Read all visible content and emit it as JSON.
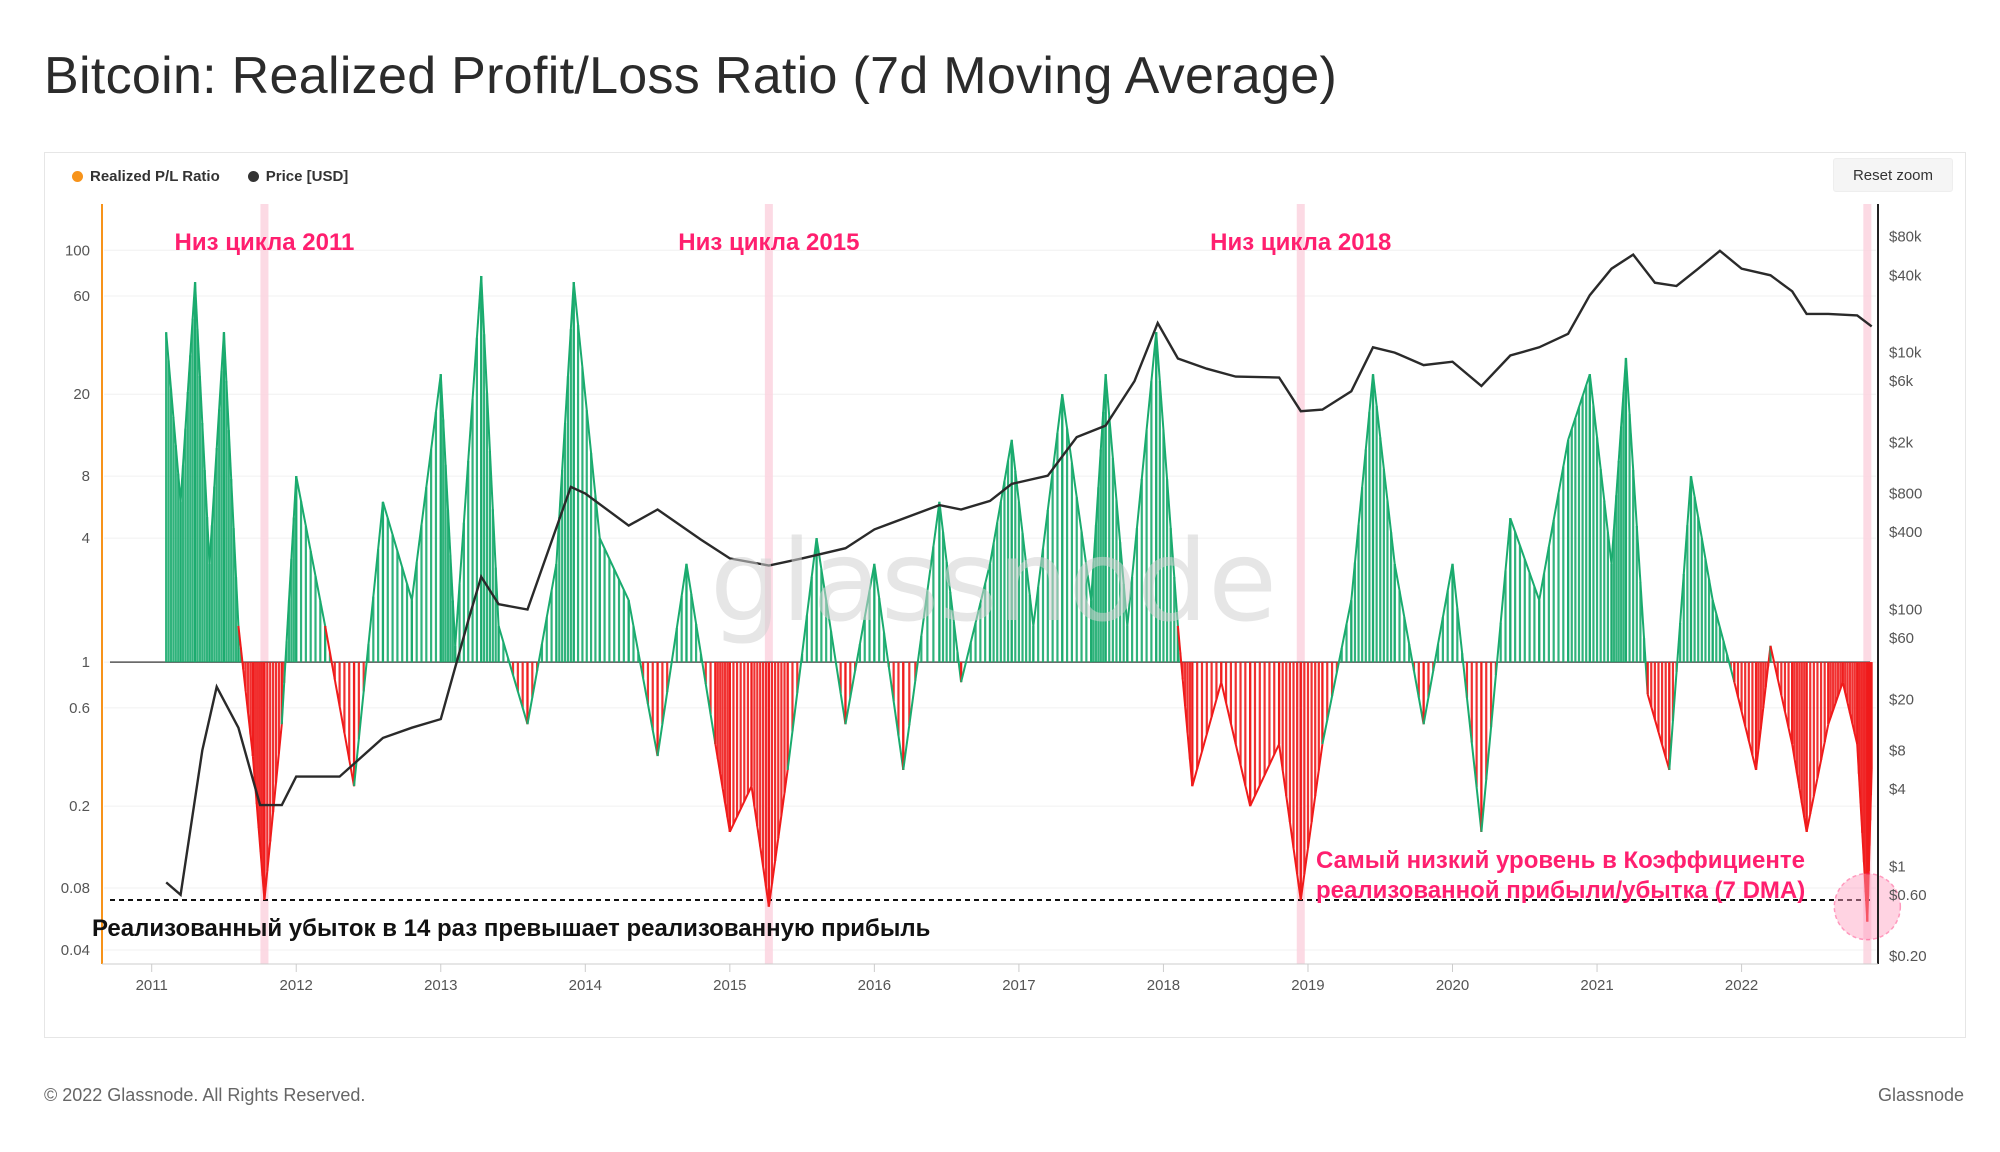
{
  "title": "Bitcoin: Realized Profit/Loss Ratio (7d Moving Average)",
  "legend": [
    {
      "label": "Realized P/L Ratio",
      "color": "#f7931a"
    },
    {
      "label": "Price [USD]",
      "color": "#333333"
    }
  ],
  "reset_zoom_label": "Reset zoom",
  "watermark": "glassnode",
  "footer": {
    "copyright": "© 2022 Glassnode. All Rights Reserved.",
    "brand": "Glassnode"
  },
  "colors": {
    "above_one": "#1aab6e",
    "below_one": "#f01b1b",
    "price": "#2a2a2a",
    "highlight": "#ff1f6f",
    "cycle_band": "#fbd3df"
  },
  "chart_data": {
    "type": "line",
    "x_ticks": [
      "2011",
      "2012",
      "2013",
      "2014",
      "2015",
      "2016",
      "2017",
      "2018",
      "2019",
      "2020",
      "2021",
      "2022"
    ],
    "left_axis": {
      "scale": "log",
      "ticks": [
        "100",
        "60",
        "20",
        "8",
        "4",
        "1",
        "0.6",
        "0.2",
        "0.08",
        "0.04"
      ],
      "range": [
        0.035,
        150
      ]
    },
    "right_axis": {
      "scale": "log",
      "ticks": [
        "$80k",
        "$40k",
        "$10k",
        "$6k",
        "$2k",
        "$800",
        "$400",
        "$100",
        "$60",
        "$20",
        "$8",
        "$4",
        "$1",
        "$0.60",
        "$0.20"
      ],
      "range": [
        0.18,
        120000
      ]
    },
    "reference_lines": [
      {
        "value": 1,
        "style": "solid"
      },
      {
        "value": 0.07,
        "style": "dashed"
      }
    ],
    "cycle_bottoms": [
      {
        "label": "Низ цикла 2011",
        "x": 2011.78
      },
      {
        "label": "Низ цикла 2015",
        "x": 2015.27
      },
      {
        "label": "Низ цикла 2018",
        "x": 2018.95
      },
      {
        "label": "",
        "x": 2022.87
      }
    ],
    "annotations": {
      "lowest_line1": "Самый низкий уровень в Коэффициенте",
      "lowest_line2": "реализованной прибыли/убытка (7 DMA)",
      "loss_14x": "Реализованный убыток в 14 раз превышает реализованную прибыль"
    },
    "series": [
      {
        "name": "Realized P/L Ratio",
        "points": [
          [
            2011.1,
            40
          ],
          [
            2011.2,
            6
          ],
          [
            2011.3,
            70
          ],
          [
            2011.4,
            3
          ],
          [
            2011.5,
            40
          ],
          [
            2011.6,
            1.5
          ],
          [
            2011.7,
            0.35
          ],
          [
            2011.78,
            0.07
          ],
          [
            2011.9,
            0.5
          ],
          [
            2012.0,
            8
          ],
          [
            2012.2,
            1.5
          ],
          [
            2012.4,
            0.25
          ],
          [
            2012.6,
            6
          ],
          [
            2012.8,
            2
          ],
          [
            2013.0,
            25
          ],
          [
            2013.1,
            1.2
          ],
          [
            2013.28,
            75
          ],
          [
            2013.4,
            1.5
          ],
          [
            2013.6,
            0.5
          ],
          [
            2013.8,
            3
          ],
          [
            2013.92,
            70
          ],
          [
            2014.1,
            4
          ],
          [
            2014.3,
            2
          ],
          [
            2014.5,
            0.35
          ],
          [
            2014.7,
            3
          ],
          [
            2014.9,
            0.4
          ],
          [
            2015.0,
            0.15
          ],
          [
            2015.15,
            0.25
          ],
          [
            2015.27,
            0.065
          ],
          [
            2015.4,
            0.3
          ],
          [
            2015.6,
            4
          ],
          [
            2015.8,
            0.5
          ],
          [
            2016.0,
            3
          ],
          [
            2016.2,
            0.3
          ],
          [
            2016.45,
            6
          ],
          [
            2016.6,
            0.8
          ],
          [
            2016.8,
            3
          ],
          [
            2016.95,
            12
          ],
          [
            2017.1,
            1.5
          ],
          [
            2017.3,
            20
          ],
          [
            2017.5,
            2
          ],
          [
            2017.6,
            25
          ],
          [
            2017.75,
            1.5
          ],
          [
            2017.95,
            40
          ],
          [
            2018.1,
            1.5
          ],
          [
            2018.2,
            0.25
          ],
          [
            2018.4,
            0.8
          ],
          [
            2018.6,
            0.2
          ],
          [
            2018.8,
            0.4
          ],
          [
            2018.95,
            0.07
          ],
          [
            2019.1,
            0.4
          ],
          [
            2019.3,
            2
          ],
          [
            2019.45,
            25
          ],
          [
            2019.6,
            3
          ],
          [
            2019.8,
            0.5
          ],
          [
            2020.0,
            3
          ],
          [
            2020.2,
            0.15
          ],
          [
            2020.4,
            5
          ],
          [
            2020.6,
            2
          ],
          [
            2020.8,
            12
          ],
          [
            2020.95,
            25
          ],
          [
            2021.1,
            3
          ],
          [
            2021.2,
            30
          ],
          [
            2021.35,
            0.7
          ],
          [
            2021.5,
            0.3
          ],
          [
            2021.65,
            8
          ],
          [
            2021.8,
            2
          ],
          [
            2021.95,
            0.8
          ],
          [
            2022.1,
            0.3
          ],
          [
            2022.2,
            1.2
          ],
          [
            2022.35,
            0.4
          ],
          [
            2022.45,
            0.15
          ],
          [
            2022.6,
            0.5
          ],
          [
            2022.7,
            0.8
          ],
          [
            2022.8,
            0.4
          ],
          [
            2022.87,
            0.055
          ],
          [
            2022.9,
            0.3
          ]
        ]
      },
      {
        "name": "Price [USD]",
        "points": [
          [
            2011.1,
            0.75
          ],
          [
            2011.2,
            0.6
          ],
          [
            2011.35,
            8
          ],
          [
            2011.45,
            25
          ],
          [
            2011.6,
            12
          ],
          [
            2011.75,
            3
          ],
          [
            2011.9,
            3
          ],
          [
            2012.0,
            5
          ],
          [
            2012.3,
            5
          ],
          [
            2012.6,
            10
          ],
          [
            2012.8,
            12
          ],
          [
            2013.0,
            14
          ],
          [
            2013.2,
            90
          ],
          [
            2013.28,
            180
          ],
          [
            2013.4,
            110
          ],
          [
            2013.6,
            100
          ],
          [
            2013.9,
            900
          ],
          [
            2014.0,
            800
          ],
          [
            2014.3,
            450
          ],
          [
            2014.5,
            600
          ],
          [
            2014.8,
            350
          ],
          [
            2015.0,
            250
          ],
          [
            2015.27,
            220
          ],
          [
            2015.5,
            250
          ],
          [
            2015.8,
            300
          ],
          [
            2016.0,
            420
          ],
          [
            2016.45,
            650
          ],
          [
            2016.6,
            600
          ],
          [
            2016.8,
            700
          ],
          [
            2016.95,
            950
          ],
          [
            2017.2,
            1100
          ],
          [
            2017.4,
            2200
          ],
          [
            2017.6,
            2700
          ],
          [
            2017.8,
            6000
          ],
          [
            2017.96,
            17000
          ],
          [
            2018.1,
            9000
          ],
          [
            2018.3,
            7500
          ],
          [
            2018.5,
            6500
          ],
          [
            2018.8,
            6400
          ],
          [
            2018.95,
            3500
          ],
          [
            2019.1,
            3600
          ],
          [
            2019.3,
            5000
          ],
          [
            2019.45,
            11000
          ],
          [
            2019.6,
            10000
          ],
          [
            2019.8,
            8000
          ],
          [
            2020.0,
            8500
          ],
          [
            2020.2,
            5500
          ],
          [
            2020.4,
            9500
          ],
          [
            2020.6,
            11000
          ],
          [
            2020.8,
            14000
          ],
          [
            2020.95,
            28000
          ],
          [
            2021.1,
            45000
          ],
          [
            2021.25,
            58000
          ],
          [
            2021.4,
            35000
          ],
          [
            2021.55,
            33000
          ],
          [
            2021.7,
            45000
          ],
          [
            2021.85,
            62000
          ],
          [
            2022.0,
            45000
          ],
          [
            2022.2,
            40000
          ],
          [
            2022.35,
            30000
          ],
          [
            2022.45,
            20000
          ],
          [
            2022.6,
            20000
          ],
          [
            2022.8,
            19500
          ],
          [
            2022.9,
            16000
          ]
        ]
      }
    ]
  }
}
